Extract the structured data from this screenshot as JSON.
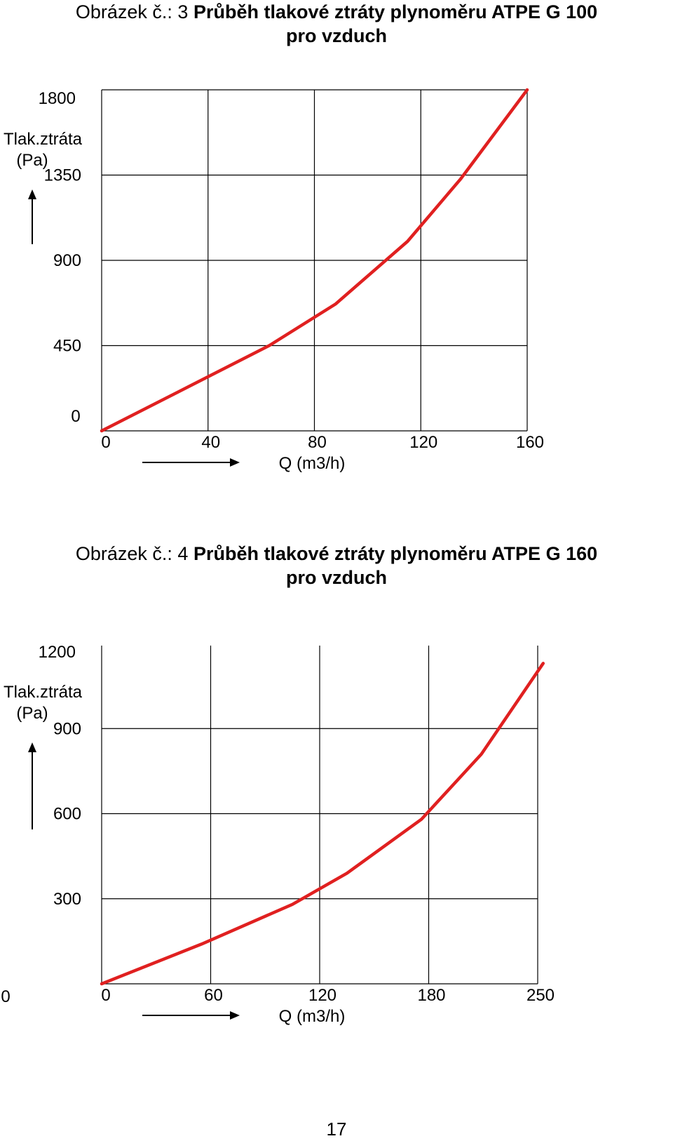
{
  "figures": [
    {
      "caption_prefix": "Obrázek č.: 3",
      "caption_title": "Průběh tlakové ztráty plynoměru ATPE G 100",
      "caption_title2": "pro vzduch"
    },
    {
      "caption_prefix": "Obrázek č.: 4",
      "caption_title": "Průběh tlakové ztráty plynoměru ATPE G 160",
      "caption_title2": "pro vzduch"
    }
  ],
  "page_number": "17",
  "chart_data": [
    {
      "type": "line",
      "title": "Průběh tlakové ztráty plynoměru ATPE G 100 pro vzduch",
      "xlabel": "Q (m3/h)",
      "ylabel": "Tlak.ztráta (Pa)",
      "x_ticks": [
        "0",
        "40",
        "80",
        "120",
        "160"
      ],
      "y_ticks": [
        "0",
        "450",
        "900",
        "1350",
        "1800"
      ],
      "xlim": [
        0,
        160
      ],
      "ylim": [
        0,
        1800
      ],
      "grid": true,
      "line_color": "#e02020",
      "series": [
        {
          "x": [
            0,
            35,
            63,
            88,
            115,
            135,
            160
          ],
          "y": [
            0,
            250,
            450,
            670,
            1000,
            1330,
            1800
          ]
        }
      ]
    },
    {
      "type": "line",
      "title": "Průběh tlakové ztráty plynoměru ATPE G 160 pro vzduch",
      "xlabel": "Q (m3/h)",
      "ylabel": "Tlak.ztráta (Pa)",
      "x_ticks": [
        "0",
        "60",
        "120",
        "180",
        "250"
      ],
      "y_ticks": [
        "0",
        "300",
        "600",
        "900",
        "1200"
      ],
      "xlim": [
        0,
        240
      ],
      "ylim": [
        0,
        1200
      ],
      "grid": true,
      "line_color": "#e02020",
      "series": [
        {
          "x": [
            0,
            55,
            105,
            135,
            176,
            209,
            243
          ],
          "y": [
            0,
            140,
            280,
            390,
            580,
            810,
            1130
          ]
        }
      ]
    }
  ]
}
